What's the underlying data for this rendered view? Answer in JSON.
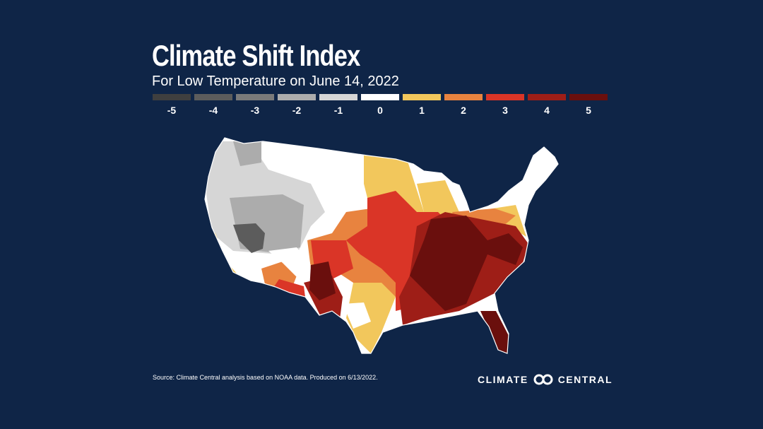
{
  "header": {
    "title": "Climate Shift Index",
    "subtitle": "For Low Temperature on June 14, 2022"
  },
  "legend": [
    {
      "label": "-5",
      "color": "#3f3f3f"
    },
    {
      "label": "-4",
      "color": "#5c5c5c"
    },
    {
      "label": "-3",
      "color": "#7a7a7a"
    },
    {
      "label": "-2",
      "color": "#acacac"
    },
    {
      "label": "-1",
      "color": "#d6d6d6"
    },
    {
      "label": "0",
      "color": "#ffffff"
    },
    {
      "label": "1",
      "color": "#f2c75c"
    },
    {
      "label": "2",
      "color": "#e8833f"
    },
    {
      "label": "3",
      "color": "#da3527"
    },
    {
      "label": "4",
      "color": "#9e1e17"
    },
    {
      "label": "5",
      "color": "#6a0f0d"
    }
  ],
  "map": {
    "region": "Contiguous United States",
    "unit": "counties"
  },
  "footer": {
    "source": "Source: Climate Central analysis based on NOAA data. Produced on 6/13/2022.",
    "logo_left": "CLIMATE",
    "logo_right": "CENTRAL"
  }
}
